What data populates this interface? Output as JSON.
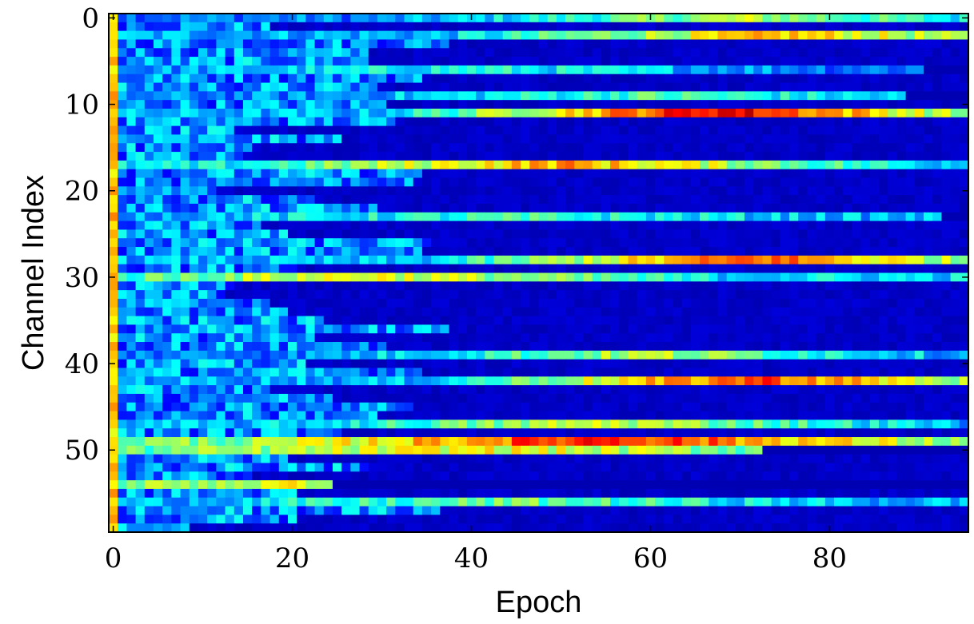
{
  "chart_data": {
    "type": "heatmap",
    "title": "",
    "xlabel": "Epoch",
    "ylabel": "Channel Index",
    "x_range": [
      0,
      96
    ],
    "y_range": [
      0,
      60
    ],
    "y_inverted": true,
    "colormap": "jet",
    "value_range": [
      0,
      1
    ],
    "grid": false,
    "xticks": [
      0,
      20,
      40,
      60,
      80
    ],
    "yticks": [
      0,
      10,
      20,
      30,
      40,
      50
    ],
    "n_epochs": 96,
    "n_channels": 60,
    "row_profiles": [
      {
        "channel": 0,
        "start": 0.25,
        "peak": 0.55,
        "peak_epoch": 70,
        "fade_epoch": 96
      },
      {
        "channel": 2,
        "start": 0.3,
        "peak": 0.68,
        "peak_epoch": 75,
        "fade_epoch": 96
      },
      {
        "channel": 6,
        "start": 0.25,
        "peak": 0.4,
        "peak_epoch": 40,
        "fade_epoch": 90
      },
      {
        "channel": 9,
        "start": 0.25,
        "peak": 0.45,
        "peak_epoch": 60,
        "fade_epoch": 88
      },
      {
        "channel": 11,
        "start": 0.3,
        "peak": 0.92,
        "peak_epoch": 68,
        "fade_epoch": 96
      },
      {
        "channel": 17,
        "start": 0.35,
        "peak": 0.72,
        "peak_epoch": 50,
        "fade_epoch": 96
      },
      {
        "channel": 23,
        "start": 0.3,
        "peak": 0.42,
        "peak_epoch": 45,
        "fade_epoch": 92
      },
      {
        "channel": 28,
        "start": 0.3,
        "peak": 0.8,
        "peak_epoch": 72,
        "fade_epoch": 96
      },
      {
        "channel": 30,
        "start": 0.35,
        "peak": 0.62,
        "peak_epoch": 28,
        "fade_epoch": 96
      },
      {
        "channel": 39,
        "start": 0.25,
        "peak": 0.55,
        "peak_epoch": 60,
        "fade_epoch": 96
      },
      {
        "channel": 42,
        "start": 0.3,
        "peak": 0.82,
        "peak_epoch": 72,
        "fade_epoch": 96
      },
      {
        "channel": 47,
        "start": 0.3,
        "peak": 0.58,
        "peak_epoch": 55,
        "fade_epoch": 96
      },
      {
        "channel": 49,
        "start": 0.5,
        "peak": 0.88,
        "peak_epoch": 55,
        "fade_epoch": 96
      },
      {
        "channel": 50,
        "start": 0.45,
        "peak": 0.62,
        "peak_epoch": 40,
        "fade_epoch": 72
      },
      {
        "channel": 54,
        "start": 0.4,
        "peak": 0.6,
        "peak_epoch": 22,
        "fade_epoch": 24
      },
      {
        "channel": 56,
        "start": 0.3,
        "peak": 0.48,
        "peak_epoch": 45,
        "fade_epoch": 96
      }
    ],
    "background_value": 0.05,
    "first_column_value": 0.6
  },
  "colors": {
    "background": "#ffffff",
    "axis": "#000000",
    "floor": "#00008f"
  }
}
